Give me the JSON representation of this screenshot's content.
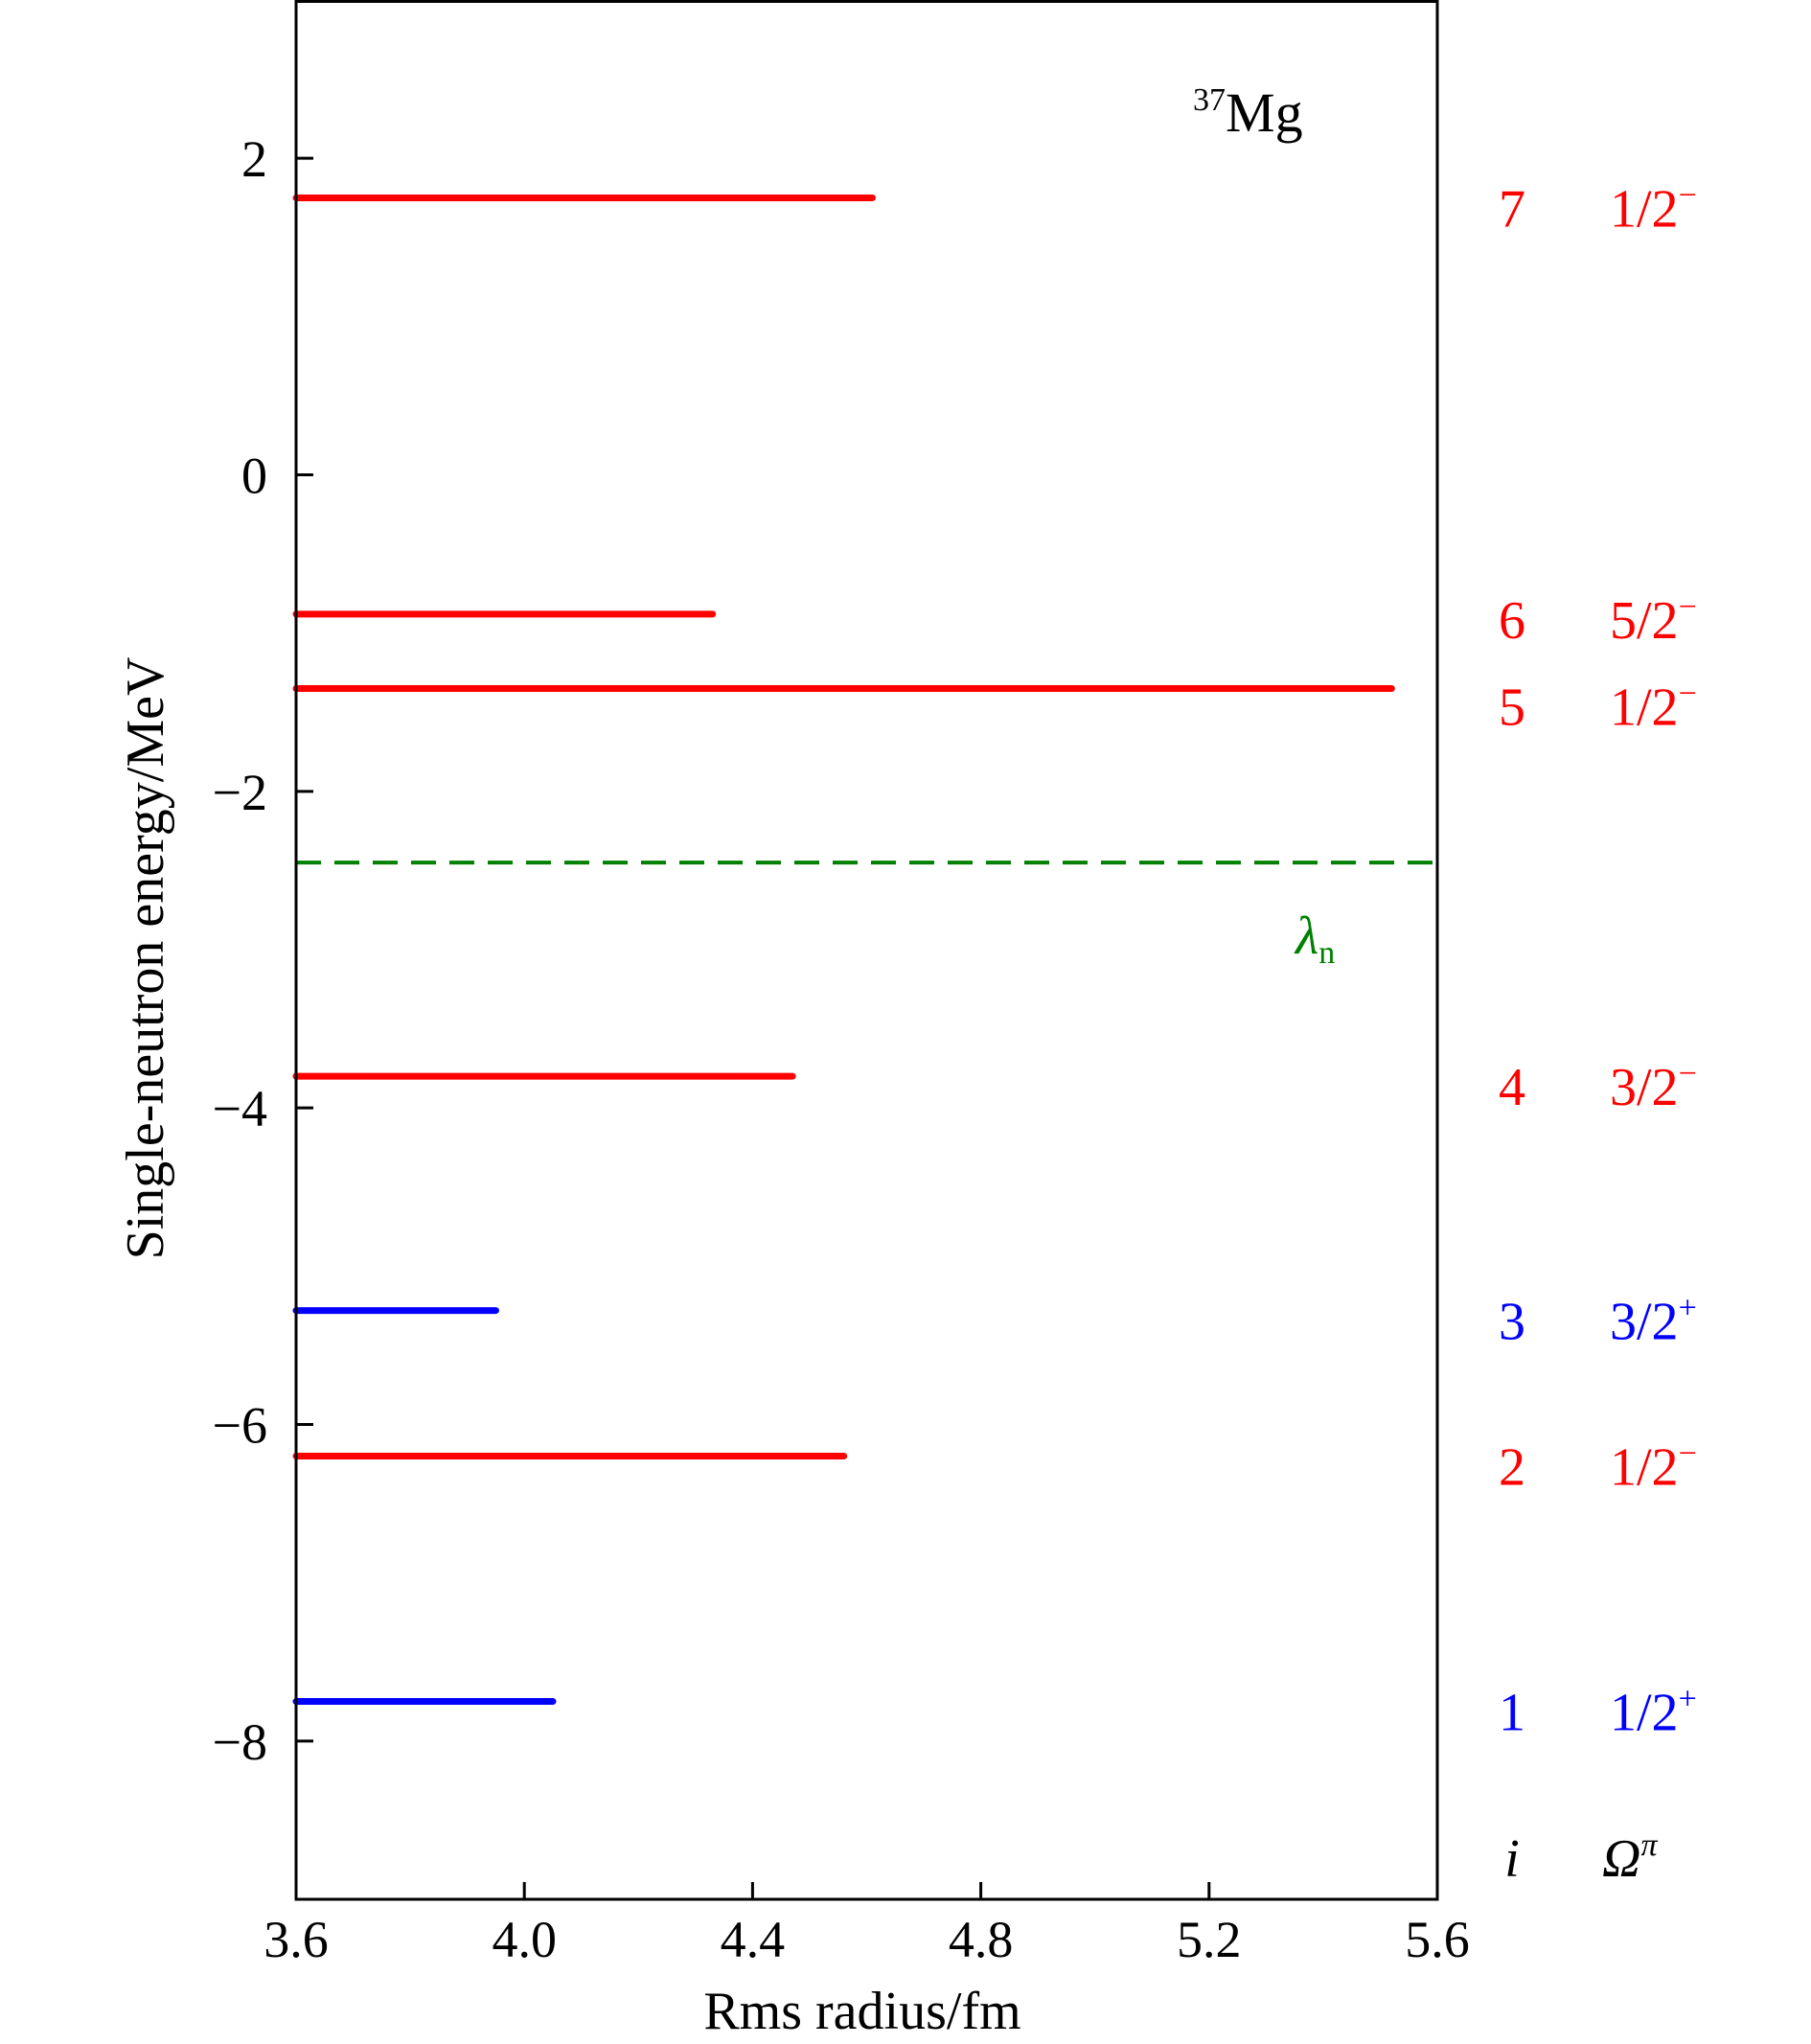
{
  "chart_data": {
    "type": "horizontal_levels",
    "nucleus": {
      "mass_number": "37",
      "symbol": "Mg"
    },
    "xlabel": "Rms radius/fm",
    "ylabel": "Single-neutron energy/MeV",
    "xlim": [
      3.6,
      5.6
    ],
    "ylim": [
      -9.0,
      3.0
    ],
    "x_ticks": [
      "3.6",
      "4.0",
      "4.4",
      "4.8",
      "5.2",
      "5.6"
    ],
    "y_ticks": [
      "2",
      "0",
      "−2",
      "−4",
      "−6",
      "−8"
    ],
    "colors": {
      "negative_parity": "#ff0000",
      "positive_parity": "#0000ff",
      "fermi": "#008000",
      "axes": "#000000"
    },
    "levels": [
      {
        "i": "1",
        "omega": "1/2",
        "parity": "+",
        "energy": -7.75,
        "radius": 4.05
      },
      {
        "i": "2",
        "omega": "1/2",
        "parity": "−",
        "energy": -6.2,
        "radius": 4.56
      },
      {
        "i": "3",
        "omega": "3/2",
        "parity": "+",
        "energy": -5.28,
        "radius": 3.95
      },
      {
        "i": "4",
        "omega": "3/2",
        "parity": "−",
        "energy": -3.8,
        "radius": 4.47
      },
      {
        "i": "5",
        "omega": "1/2",
        "parity": "−",
        "energy": -1.35,
        "radius": 5.52
      },
      {
        "i": "6",
        "omega": "5/2",
        "parity": "−",
        "energy": -0.88,
        "radius": 4.33
      },
      {
        "i": "7",
        "omega": "1/2",
        "parity": "−",
        "energy": 1.75,
        "radius": 4.61
      }
    ],
    "fermi_level": {
      "symbol": "λ",
      "subscript": "n",
      "energy": -2.45
    },
    "column_headers": {
      "index": "i",
      "omega": "Ω",
      "omega_sup": "π"
    }
  }
}
